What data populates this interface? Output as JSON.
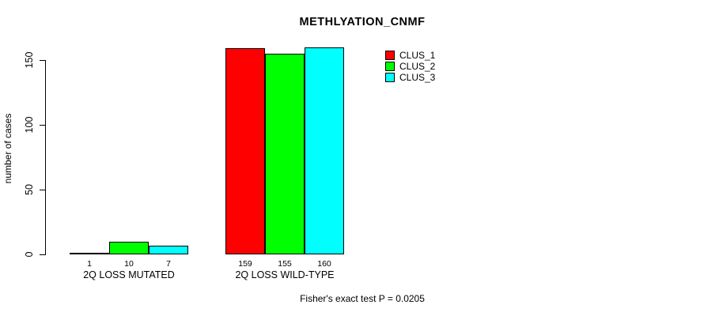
{
  "chart_data": {
    "type": "bar",
    "title": "METHLYATION_CNMF",
    "ylabel": "number of cases",
    "xlabel": "",
    "annotation": "Fisher's exact test P = 0.0205",
    "categories": [
      "2Q LOSS MUTATED",
      "2Q LOSS WILD-TYPE"
    ],
    "series": [
      {
        "name": "CLUS_1",
        "color": "#FF0000",
        "values": [
          1,
          159
        ]
      },
      {
        "name": "CLUS_2",
        "color": "#00FF00",
        "values": [
          10,
          155
        ]
      },
      {
        "name": "CLUS_3",
        "color": "#00FFFF",
        "values": [
          7,
          160
        ]
      }
    ],
    "yticks": [
      0,
      50,
      100,
      150
    ],
    "ylim": [
      0,
      160
    ],
    "bar_value_labels": [
      [
        "1",
        "10",
        "7"
      ],
      [
        "159",
        "155",
        "160"
      ]
    ],
    "legend_position": "top-right",
    "grid": false,
    "background": "#FFFFFF",
    "bar_border_color": "#000000"
  }
}
